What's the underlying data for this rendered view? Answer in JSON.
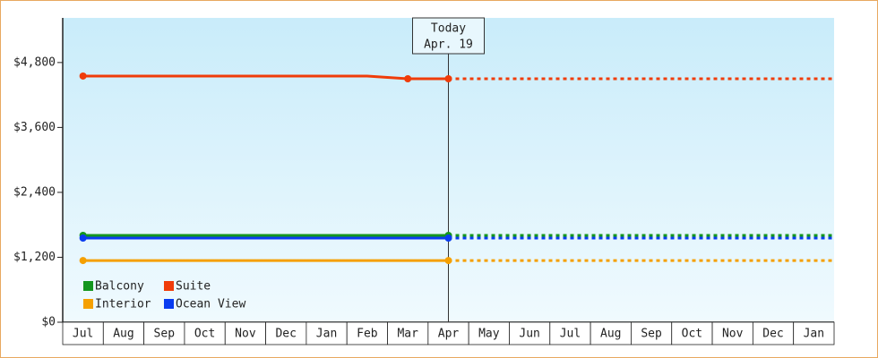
{
  "chart_data": {
    "type": "line",
    "categories": [
      "Jul",
      "Aug",
      "Sep",
      "Oct",
      "Nov",
      "Dec",
      "Jan",
      "Feb",
      "Mar",
      "Apr",
      "May",
      "Jun",
      "Jul",
      "Aug",
      "Sep",
      "Oct",
      "Nov",
      "Dec",
      "Jan"
    ],
    "series": [
      {
        "name": "Balcony",
        "color": "#14961e",
        "values": [
          1605,
          1605,
          1605,
          1605,
          1605,
          1605,
          1605,
          1605,
          1605,
          1605,
          null,
          null,
          null,
          null,
          null,
          null,
          null,
          null,
          null
        ]
      },
      {
        "name": "Suite",
        "color": "#f03c0a",
        "values": [
          4550,
          4550,
          4550,
          4550,
          4550,
          4550,
          4550,
          4550,
          4500,
          4500,
          null,
          null,
          null,
          null,
          null,
          null,
          null,
          null,
          null
        ]
      },
      {
        "name": "Interior",
        "color": "#f5a000",
        "values": [
          1140,
          1140,
          1140,
          1140,
          1140,
          1140,
          1140,
          1140,
          1140,
          1140,
          null,
          null,
          null,
          null,
          null,
          null,
          null,
          null,
          null
        ]
      },
      {
        "name": "Ocean View",
        "color": "#0a3cf0",
        "values": [
          1555,
          1555,
          1555,
          1555,
          1555,
          1555,
          1555,
          1555,
          1555,
          1555,
          null,
          null,
          null,
          null,
          null,
          null,
          null,
          null,
          null
        ]
      }
    ],
    "ylim": [
      0,
      5625
    ],
    "yticks": [
      {
        "value": 0,
        "label": "$0"
      },
      {
        "value": 1200,
        "label": "$1,200"
      },
      {
        "value": 2400,
        "label": "$2,400"
      },
      {
        "value": 3600,
        "label": "$3,600"
      },
      {
        "value": 4800,
        "label": "$4,800"
      }
    ],
    "annotation": {
      "lines": [
        "Today",
        "Apr. 19"
      ],
      "category": "Apr"
    }
  }
}
